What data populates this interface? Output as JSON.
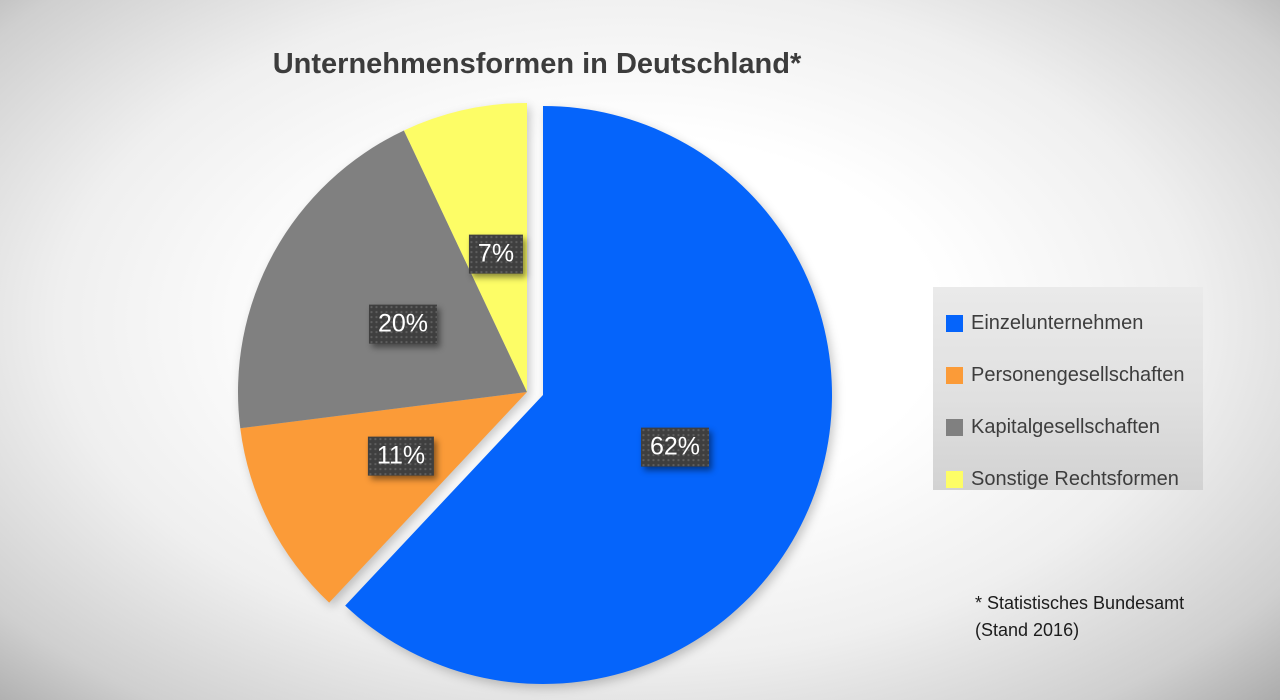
{
  "chart_data": {
    "type": "pie",
    "title": "Unternehmensformen in Deutschland*",
    "unit": "%",
    "direction": "clockwise",
    "start_angle_deg": 0,
    "slices": [
      {
        "label": "Einzelunternehmen",
        "value": 62,
        "display": "62%",
        "color": "#0564fb",
        "exploded": true
      },
      {
        "label": "Personengesellschaften",
        "value": 11,
        "display": "11%",
        "color": "#fb9b38",
        "exploded": false
      },
      {
        "label": "Kapitalgesellschaften",
        "value": 20,
        "display": "20%",
        "color": "#808080",
        "exploded": false
      },
      {
        "label": "Sonstige Rechtsformen",
        "value": 7,
        "display": "7%",
        "color": "#fdfd66",
        "exploded": false
      }
    ],
    "legend_position": "right",
    "data_label_style": {
      "background": "#3f3f3f",
      "text_color": "#ffffff"
    },
    "footnote_lines": [
      "* Statistisches Bundesamt",
      "(Stand 2016)"
    ]
  }
}
